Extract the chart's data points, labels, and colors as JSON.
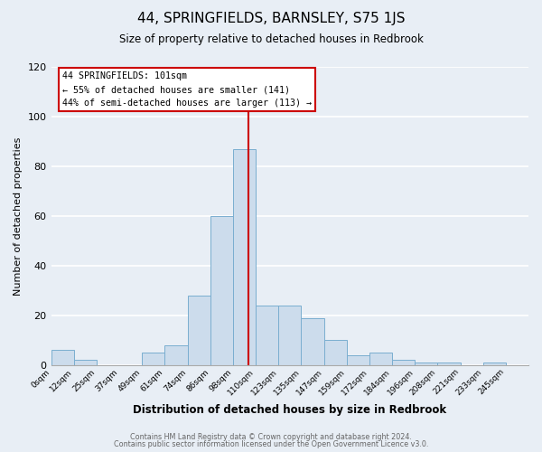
{
  "title": "44, SPRINGFIELDS, BARNSLEY, S75 1JS",
  "subtitle": "Size of property relative to detached houses in Redbrook",
  "xlabel": "Distribution of detached houses by size in Redbrook",
  "ylabel": "Number of detached properties",
  "bin_labels": [
    "0sqm",
    "12sqm",
    "25sqm",
    "37sqm",
    "49sqm",
    "61sqm",
    "74sqm",
    "86sqm",
    "98sqm",
    "110sqm",
    "123sqm",
    "135sqm",
    "147sqm",
    "159sqm",
    "172sqm",
    "184sqm",
    "196sqm",
    "208sqm",
    "221sqm",
    "233sqm",
    "245sqm"
  ],
  "counts": [
    6,
    2,
    0,
    0,
    5,
    8,
    28,
    60,
    87,
    24,
    24,
    19,
    10,
    4,
    5,
    2,
    1,
    1,
    0,
    1,
    0
  ],
  "bar_color": "#ccdcec",
  "bar_edge_color": "#7aaed0",
  "vline_bin": 8.7,
  "vline_color": "#cc0000",
  "annotation_title": "44 SPRINGFIELDS: 101sqm",
  "annotation_line1": "← 55% of detached houses are smaller (141)",
  "annotation_line2": "44% of semi-detached houses are larger (113) →",
  "annotation_box_color": "#ffffff",
  "annotation_box_edge": "#cc0000",
  "ylim": [
    0,
    120
  ],
  "yticks": [
    0,
    20,
    40,
    60,
    80,
    100,
    120
  ],
  "footer1": "Contains HM Land Registry data © Crown copyright and database right 2024.",
  "footer2": "Contains public sector information licensed under the Open Government Licence v3.0.",
  "bg_color": "#e8eef5",
  "plot_bg_color": "#e8eef5"
}
